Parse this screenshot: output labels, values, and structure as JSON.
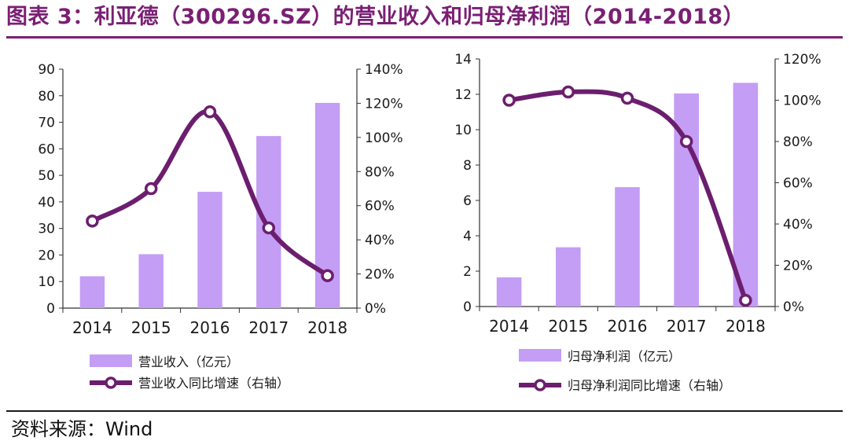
{
  "figure": {
    "title": "图表 3：利亚德（300296.SZ）的营业收入和归母净利润（2014-2018）",
    "source": "资料来源：Wind",
    "accent_color": "#7a1f74",
    "bar_color": "#c49df5",
    "line_color": "#6c1e6e"
  },
  "chart_data": [
    {
      "type": "bar+line",
      "categories": [
        "2014",
        "2015",
        "2016",
        "2017",
        "2018"
      ],
      "left_axis": {
        "ylim": [
          0,
          90
        ],
        "ticks": [
          "0",
          "10",
          "20",
          "30",
          "40",
          "50",
          "60",
          "70",
          "80",
          "90"
        ]
      },
      "right_axis": {
        "ylim": [
          0,
          140
        ],
        "ticks": [
          "0%",
          "20%",
          "40%",
          "60%",
          "80%",
          "100%",
          "120%",
          "140%"
        ]
      },
      "grid": false,
      "legend_position": "bottom",
      "series": [
        {
          "name": "营业收入（亿元）",
          "type": "bar",
          "axis": "left",
          "values": [
            12,
            20.3,
            43.8,
            64.8,
            77.3
          ]
        },
        {
          "name": "营业收入同比增速（右轴）",
          "type": "line",
          "axis": "right",
          "values": [
            51,
            70,
            115,
            47,
            19
          ]
        }
      ]
    },
    {
      "type": "bar+line",
      "categories": [
        "2014",
        "2015",
        "2016",
        "2017",
        "2018"
      ],
      "left_axis": {
        "ylim": [
          0,
          14
        ],
        "ticks": [
          "0",
          "2",
          "4",
          "6",
          "8",
          "10",
          "12",
          "14"
        ]
      },
      "right_axis": {
        "ylim": [
          0,
          120
        ],
        "ticks": [
          "0%",
          "20%",
          "40%",
          "60%",
          "80%",
          "100%",
          "120%"
        ]
      },
      "grid": false,
      "legend_position": "bottom",
      "series": [
        {
          "name": "归母净利润（亿元）",
          "type": "bar",
          "axis": "left",
          "values": [
            1.65,
            3.35,
            6.75,
            12.05,
            12.65
          ]
        },
        {
          "name": "归母净利润同比增速（右轴）",
          "type": "line",
          "axis": "right",
          "values": [
            100,
            104,
            101,
            80,
            3
          ]
        }
      ]
    }
  ]
}
